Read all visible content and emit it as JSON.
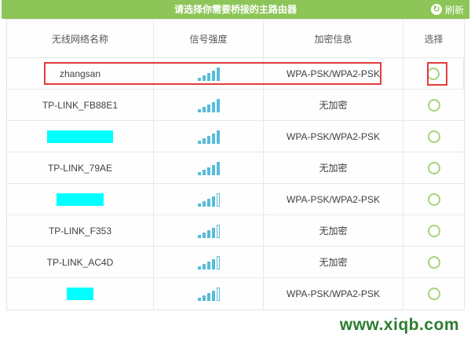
{
  "header": {
    "title": "请选择你需要桥接的主路由器",
    "refresh": {
      "label": "刷新",
      "icon": "refresh-icon",
      "glyph": "↻"
    }
  },
  "table": {
    "columns": [
      "无线网络名称",
      "信号强度",
      "加密信息",
      "选择"
    ],
    "rows": [
      {
        "ssid": "zhangsan",
        "censored": false,
        "censor_width": 0,
        "signal": 5,
        "signal_max": 5,
        "encryption": "WPA-PSK/WPA2-PSK",
        "selected": false,
        "highlighted": true
      },
      {
        "ssid": "TP-LINK_FB88E1",
        "censored": false,
        "censor_width": 0,
        "signal": 5,
        "signal_max": 5,
        "encryption": "无加密",
        "selected": false,
        "highlighted": false
      },
      {
        "ssid": "",
        "censored": true,
        "censor_width": 84,
        "signal": 5,
        "signal_max": 5,
        "encryption": "WPA-PSK/WPA2-PSK",
        "selected": false,
        "highlighted": false
      },
      {
        "ssid": "TP-LINK_79AE",
        "censored": false,
        "censor_width": 0,
        "signal": 5,
        "signal_max": 5,
        "encryption": "无加密",
        "selected": false,
        "highlighted": false
      },
      {
        "ssid": "",
        "censored": true,
        "censor_width": 60,
        "signal": 4,
        "signal_max": 5,
        "encryption": "WPA-PSK/WPA2-PSK",
        "selected": false,
        "highlighted": false
      },
      {
        "ssid": "TP-LINK_F353",
        "censored": false,
        "censor_width": 0,
        "signal": 4,
        "signal_max": 5,
        "encryption": "无加密",
        "selected": false,
        "highlighted": false
      },
      {
        "ssid": "TP-LINK_AC4D",
        "censored": false,
        "censor_width": 0,
        "signal": 4,
        "signal_max": 5,
        "encryption": "无加密",
        "selected": false,
        "highlighted": false
      },
      {
        "ssid": "",
        "censored": true,
        "censor_width": 34,
        "signal": 4,
        "signal_max": 5,
        "encryption": "WPA-PSK/WPA2-PSK",
        "selected": false,
        "highlighted": false
      }
    ]
  },
  "footer": {
    "watermark": "www.xiqb.com"
  },
  "colors": {
    "header_bg": "#8dc558",
    "signal_bar": "#57bcd9",
    "radio_border": "#a8d37c",
    "censor_block": "#00ffff",
    "annotation_red": "#e23c3c",
    "watermark_green": "#2b7c31",
    "table_border": "#e8e8e8"
  }
}
